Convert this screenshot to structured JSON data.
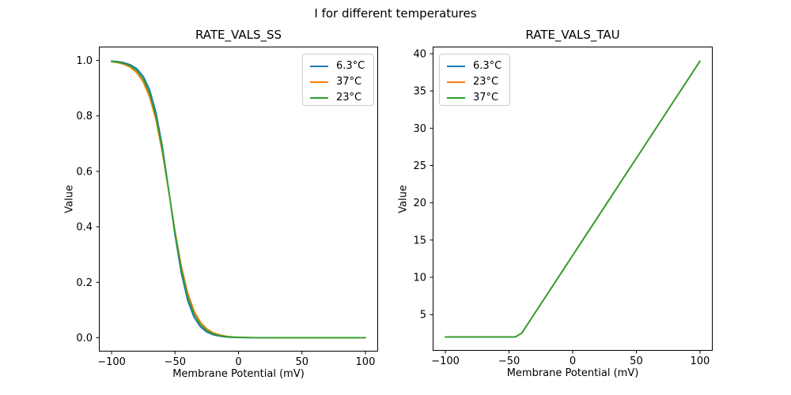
{
  "figure": {
    "suptitle": "I for different temperatures"
  },
  "accent_colors": {
    "blue": "#1f77b4",
    "orange": "#ff7f0e",
    "green": "#2ca02c"
  },
  "chart_data": [
    {
      "type": "line",
      "title": "RATE_VALS_SS",
      "xlabel": "Membrane Potential (mV)",
      "ylabel": "Value",
      "xlim": [
        -110,
        110
      ],
      "ylim": [
        -0.05,
        1.05
      ],
      "grid": false,
      "legend_position": "top-right",
      "xticks": {
        "values": [
          -100,
          -50,
          0,
          50,
          100
        ],
        "labels": [
          "−100",
          "−50",
          "0",
          "50",
          "100"
        ]
      },
      "yticks": {
        "values": [
          0.0,
          0.2,
          0.4,
          0.6,
          0.8,
          1.0
        ],
        "labels": [
          "0.0",
          "0.2",
          "0.4",
          "0.6",
          "0.8",
          "1.0"
        ]
      },
      "x": [
        -100,
        -95,
        -90,
        -85,
        -80,
        -75,
        -70,
        -65,
        -60,
        -55,
        -50,
        -45,
        -40,
        -35,
        -30,
        -25,
        -20,
        -15,
        -10,
        -5,
        0,
        5,
        10,
        15,
        20,
        25,
        30,
        35,
        40,
        45,
        50,
        55,
        60,
        65,
        70,
        75,
        80,
        85,
        90,
        95,
        100
      ],
      "series": [
        {
          "name": "6.3°C",
          "color": "#1f77b4",
          "values": [
            0.9978,
            0.9958,
            0.9918,
            0.9842,
            0.9697,
            0.9427,
            0.8941,
            0.8125,
            0.69,
            0.5333,
            0.3697,
            0.2315,
            0.1339,
            0.0735,
            0.0392,
            0.0205,
            0.0106,
            0.0055,
            0.0028,
            0.0015,
            0.0007,
            0.0004,
            0.0002,
            0.0001,
            0.0001,
            0,
            0,
            0,
            0,
            0,
            0,
            0,
            0,
            0,
            0,
            0,
            0,
            0,
            0,
            0,
            0
          ]
        },
        {
          "name": "37°C",
          "color": "#ff7f0e",
          "values": [
            0.9956,
            0.992,
            0.9857,
            0.9746,
            0.9552,
            0.9221,
            0.8679,
            0.7848,
            0.6695,
            0.5294,
            0.3845,
            0.2575,
            0.1615,
            0.0966,
            0.0561,
            0.0319,
            0.018,
            0.0101,
            0.0056,
            0.0031,
            0.0017,
            0.001,
            0.0005,
            0.0003,
            0.0002,
            0.0001,
            0.0001,
            0,
            0,
            0,
            0,
            0,
            0,
            0,
            0,
            0,
            0,
            0,
            0,
            0,
            0
          ]
        },
        {
          "name": "23°C",
          "color": "#2ca02c",
          "values": [
            0.9968,
            0.9941,
            0.989,
            0.9797,
            0.9627,
            0.9325,
            0.8808,
            0.7982,
            0.6792,
            0.5312,
            0.3775,
            0.2451,
            0.1481,
            0.0851,
            0.0474,
            0.026,
            0.0141,
            0.0076,
            0.0041,
            0.0022,
            0.0012,
            0.0006,
            0.0003,
            0.0002,
            0.0001,
            0,
            0,
            0,
            0,
            0,
            0,
            0,
            0,
            0,
            0,
            0,
            0,
            0,
            0,
            0,
            0
          ]
        }
      ]
    },
    {
      "type": "line",
      "title": "RATE_VALS_TAU",
      "xlabel": "Membrane Potential (mV)",
      "ylabel": "Value",
      "xlim": [
        -110,
        110
      ],
      "ylim": [
        0.15,
        40.95
      ],
      "grid": false,
      "legend_position": "top-left",
      "xticks": {
        "values": [
          -100,
          -50,
          0,
          50,
          100
        ],
        "labels": [
          "−100",
          "−50",
          "0",
          "50",
          "100"
        ]
      },
      "yticks": {
        "values": [
          5,
          10,
          15,
          20,
          25,
          30,
          35,
          40
        ],
        "labels": [
          "5",
          "10",
          "15",
          "20",
          "25",
          "30",
          "35",
          "40"
        ]
      },
      "x": [
        -100,
        -95,
        -90,
        -85,
        -80,
        -75,
        -70,
        -65,
        -60,
        -55,
        -50,
        -45,
        -40,
        -35,
        -30,
        -25,
        -20,
        -15,
        -10,
        -5,
        0,
        5,
        10,
        15,
        20,
        25,
        30,
        35,
        40,
        45,
        50,
        55,
        60,
        65,
        70,
        75,
        80,
        85,
        90,
        95,
        100
      ],
      "series": [
        {
          "name": "6.3°C",
          "color": "#1f77b4",
          "values": [
            2,
            2,
            2,
            2,
            2,
            2,
            2,
            2,
            2,
            2,
            2,
            2,
            2.52,
            3.82,
            5.13,
            6.43,
            7.73,
            9.04,
            10.34,
            11.64,
            12.94,
            14.25,
            15.55,
            16.85,
            18.15,
            19.46,
            20.76,
            22.06,
            23.37,
            24.67,
            25.97,
            27.27,
            28.58,
            29.88,
            31.18,
            32.49,
            33.79,
            35.09,
            36.39,
            37.7,
            39.0
          ]
        },
        {
          "name": "23°C",
          "color": "#ff7f0e",
          "values": [
            2,
            2,
            2,
            2,
            2,
            2,
            2,
            2,
            2,
            2,
            2,
            2,
            2.52,
            3.82,
            5.13,
            6.43,
            7.73,
            9.04,
            10.34,
            11.64,
            12.94,
            14.25,
            15.55,
            16.85,
            18.15,
            19.46,
            20.76,
            22.06,
            23.37,
            24.67,
            25.97,
            27.27,
            28.58,
            29.88,
            31.18,
            32.49,
            33.79,
            35.09,
            36.39,
            37.7,
            39.0
          ]
        },
        {
          "name": "37°C",
          "color": "#2ca02c",
          "values": [
            2,
            2,
            2,
            2,
            2,
            2,
            2,
            2,
            2,
            2,
            2,
            2,
            2.52,
            3.82,
            5.13,
            6.43,
            7.73,
            9.04,
            10.34,
            11.64,
            12.94,
            14.25,
            15.55,
            16.85,
            18.15,
            19.46,
            20.76,
            22.06,
            23.37,
            24.67,
            25.97,
            27.27,
            28.58,
            29.88,
            31.18,
            32.49,
            33.79,
            35.09,
            36.39,
            37.7,
            39.0
          ]
        }
      ]
    }
  ]
}
